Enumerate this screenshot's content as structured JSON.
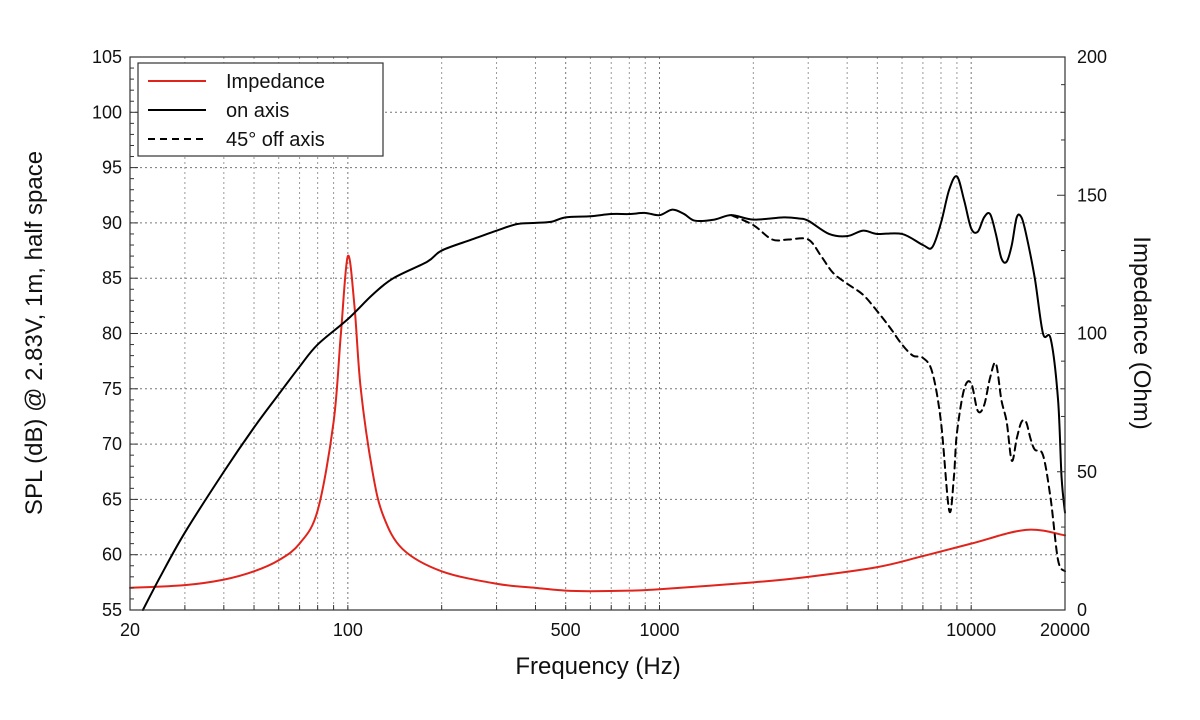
{
  "chart_data": {
    "type": "line",
    "xlabel": "Frequency (Hz)",
    "ylabel": "SPL (dB) @ 2.83V, 1m, half space",
    "y2label": "Impedance (Ohm)",
    "xscale": "log",
    "xlim": [
      20,
      20000
    ],
    "ylim": [
      55,
      105
    ],
    "y2lim": [
      0,
      200
    ],
    "x_ticks": [
      20,
      100,
      500,
      1000,
      10000,
      20000
    ],
    "x_tick_labels": [
      "20",
      "100",
      "500",
      "1000",
      "10000",
      "20000"
    ],
    "y_ticks": [
      55,
      60,
      65,
      70,
      75,
      80,
      85,
      90,
      95,
      100,
      105
    ],
    "y2_ticks": [
      0,
      50,
      100,
      150,
      200
    ],
    "grid": true,
    "legend": "top-left",
    "series": [
      {
        "name": "Impedance",
        "axis": "right",
        "color": "#e0241c",
        "dash": "solid",
        "points": [
          [
            20,
            8
          ],
          [
            30,
            9
          ],
          [
            40,
            11
          ],
          [
            50,
            14
          ],
          [
            60,
            18
          ],
          [
            70,
            24
          ],
          [
            80,
            36
          ],
          [
            90,
            68
          ],
          [
            95,
            100
          ],
          [
            100,
            128
          ],
          [
            105,
            110
          ],
          [
            110,
            80
          ],
          [
            120,
            50
          ],
          [
            130,
            34
          ],
          [
            150,
            22
          ],
          [
            200,
            14
          ],
          [
            300,
            9.5
          ],
          [
            400,
            8
          ],
          [
            500,
            7
          ],
          [
            600,
            6.8
          ],
          [
            800,
            7
          ],
          [
            1000,
            7.5
          ],
          [
            2000,
            10
          ],
          [
            3000,
            12
          ],
          [
            5000,
            15.5
          ],
          [
            7000,
            19.5
          ],
          [
            10000,
            24
          ],
          [
            15000,
            29
          ],
          [
            20000,
            27
          ]
        ]
      },
      {
        "name": "on axis",
        "axis": "left",
        "color": "#000000",
        "dash": "solid",
        "points": [
          [
            22,
            55
          ],
          [
            25,
            58
          ],
          [
            30,
            62
          ],
          [
            40,
            67.5
          ],
          [
            50,
            71.5
          ],
          [
            60,
            74.5
          ],
          [
            70,
            77
          ],
          [
            80,
            79
          ],
          [
            100,
            81.3
          ],
          [
            120,
            83.5
          ],
          [
            140,
            85
          ],
          [
            180,
            86.5
          ],
          [
            200,
            87.5
          ],
          [
            250,
            88.5
          ],
          [
            300,
            89.3
          ],
          [
            350,
            89.9
          ],
          [
            400,
            90
          ],
          [
            450,
            90.1
          ],
          [
            500,
            90.5
          ],
          [
            600,
            90.6
          ],
          [
            700,
            90.8
          ],
          [
            800,
            90.8
          ],
          [
            900,
            90.9
          ],
          [
            1000,
            90.7
          ],
          [
            1100,
            91.2
          ],
          [
            1200,
            90.8
          ],
          [
            1300,
            90.2
          ],
          [
            1500,
            90.3
          ],
          [
            1700,
            90.7
          ],
          [
            2000,
            90.3
          ],
          [
            2500,
            90.5
          ],
          [
            2800,
            90.4
          ],
          [
            3000,
            90.2
          ],
          [
            3500,
            89
          ],
          [
            4000,
            88.8
          ],
          [
            4500,
            89.3
          ],
          [
            5000,
            89
          ],
          [
            6000,
            89
          ],
          [
            7000,
            88
          ],
          [
            7500,
            87.8
          ],
          [
            8000,
            90
          ],
          [
            8500,
            93
          ],
          [
            9000,
            94.2
          ],
          [
            9500,
            92
          ],
          [
            10000,
            89.5
          ],
          [
            10500,
            89.2
          ],
          [
            11000,
            90.5
          ],
          [
            11500,
            90.8
          ],
          [
            12000,
            89
          ],
          [
            12500,
            86.8
          ],
          [
            13000,
            86.5
          ],
          [
            13500,
            88
          ],
          [
            14000,
            90.5
          ],
          [
            14500,
            90.5
          ],
          [
            15000,
            89
          ],
          [
            16000,
            85
          ],
          [
            17000,
            80
          ],
          [
            18000,
            79.5
          ],
          [
            19000,
            74
          ],
          [
            19500,
            67
          ],
          [
            20000,
            63.8
          ]
        ]
      },
      {
        "name": "45° off axis",
        "axis": "left",
        "color": "#000000",
        "dash": "dashed",
        "points": [
          [
            1700,
            90.7
          ],
          [
            2000,
            89.8
          ],
          [
            2300,
            88.5
          ],
          [
            2600,
            88.5
          ],
          [
            3000,
            88.5
          ],
          [
            3300,
            87
          ],
          [
            3600,
            85.5
          ],
          [
            4000,
            84.5
          ],
          [
            4500,
            83.5
          ],
          [
            5000,
            82
          ],
          [
            5500,
            80.5
          ],
          [
            6000,
            79
          ],
          [
            6500,
            78
          ],
          [
            7000,
            77.8
          ],
          [
            7500,
            76.5
          ],
          [
            8000,
            72
          ],
          [
            8500,
            64
          ],
          [
            8800,
            67
          ],
          [
            9000,
            71
          ],
          [
            9500,
            75
          ],
          [
            10000,
            75.5
          ],
          [
            10500,
            73
          ],
          [
            11000,
            73.5
          ],
          [
            11500,
            76
          ],
          [
            12000,
            77.3
          ],
          [
            12500,
            74
          ],
          [
            13000,
            72
          ],
          [
            13500,
            68.5
          ],
          [
            14000,
            70.5
          ],
          [
            14500,
            72
          ],
          [
            15000,
            72
          ],
          [
            15500,
            70.5
          ],
          [
            16000,
            69.5
          ],
          [
            17000,
            69
          ],
          [
            18000,
            65
          ],
          [
            19000,
            59.5
          ],
          [
            20000,
            58.5
          ]
        ]
      }
    ]
  }
}
